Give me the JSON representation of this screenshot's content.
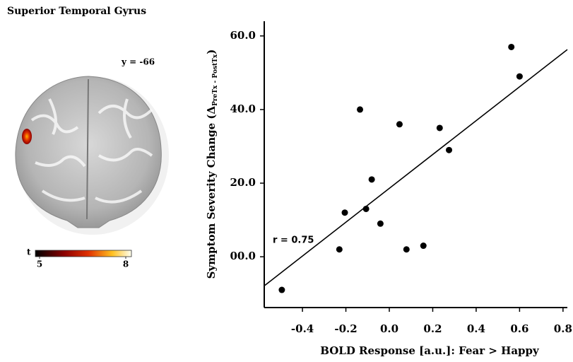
{
  "brain_panel": {
    "title": "Superior Temporal Gyrus",
    "slice_label": "y = -66",
    "colorbar": {
      "label": "t",
      "lim": [
        5,
        8
      ],
      "ticks": [
        5,
        8
      ]
    }
  },
  "chart_data": {
    "type": "scatter",
    "x": [
      -0.495,
      -0.23,
      -0.205,
      -0.135,
      -0.107,
      -0.081,
      -0.041,
      0.047,
      0.079,
      0.157,
      0.232,
      0.275,
      0.562,
      0.6
    ],
    "values": [
      -9,
      2,
      12,
      40,
      13,
      21,
      9,
      36,
      2,
      3,
      35,
      29,
      57,
      49
    ],
    "color": "#000000",
    "trendline": {
      "x": [
        -0.576,
        0.82
      ],
      "y": [
        -7.9,
        56.3
      ]
    },
    "xlim": [
      -0.576,
      0.82
    ],
    "ylim": [
      -13.8,
      64
    ],
    "xticks": [
      -0.4,
      -0.2,
      {
        "value": 0,
        "label": "0.0"
      },
      0.2,
      0.4,
      0.6,
      0.8
    ],
    "yticks": [
      {
        "value": 0,
        "label": "00.0"
      },
      {
        "value": 20,
        "label": "20.0"
      },
      {
        "value": 40,
        "label": "40.0"
      },
      {
        "value": 60,
        "label": "60.0"
      }
    ],
    "xlabel": "BOLD Response [a.u.]: Fear > Happy",
    "ylabel": {
      "main": "Symptom Severity Change (Δ",
      "sub": "PreTx - PostTx",
      "end": ")"
    },
    "annotation": "r = 0.75"
  }
}
